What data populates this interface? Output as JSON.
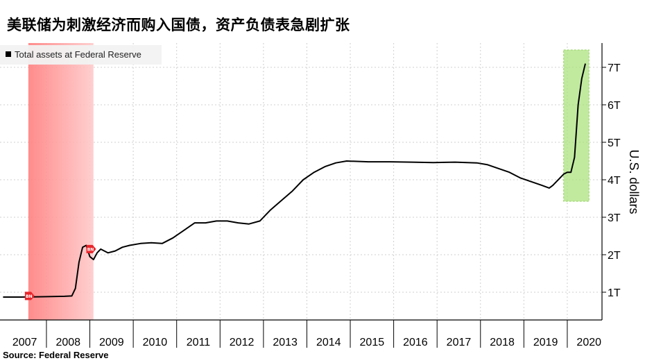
{
  "chart_data": {
    "type": "line",
    "title": "美联储为刺激经济而购入国债，资产负债表急剧扩张",
    "legend_label": "Total assets at Federal Reserve",
    "ylabel": "U.S. dollars",
    "y_ticks": [
      "1T",
      "2T",
      "3T",
      "4T",
      "5T",
      "6T",
      "7T"
    ],
    "x_ticks": [
      "2007",
      "2008",
      "2009",
      "2010",
      "2011",
      "2012",
      "2013",
      "2014",
      "2015",
      "2016",
      "2017",
      "2018",
      "2019",
      "2020"
    ],
    "ylim": [
      0,
      7.5
    ],
    "grid": true,
    "legend_position": "top-left",
    "source": "Source: Federal Reserve",
    "series": [
      {
        "color": "#000000",
        "x": [
          "2007-01",
          "2007-06",
          "2007-12",
          "2008-06",
          "2008-08",
          "2008-09",
          "2008-10",
          "2008-11",
          "2008-12",
          "2009-01",
          "2009-02",
          "2009-03",
          "2009-04",
          "2009-06",
          "2009-08",
          "2009-10",
          "2009-12",
          "2010-03",
          "2010-06",
          "2010-09",
          "2010-12",
          "2011-03",
          "2011-06",
          "2011-09",
          "2011-12",
          "2012-03",
          "2012-06",
          "2012-09",
          "2012-12",
          "2013-03",
          "2013-06",
          "2013-09",
          "2013-12",
          "2014-03",
          "2014-06",
          "2014-09",
          "2014-12",
          "2015-06",
          "2015-12",
          "2016-06",
          "2016-12",
          "2017-06",
          "2017-12",
          "2018-03",
          "2018-06",
          "2018-09",
          "2018-12",
          "2019-03",
          "2019-06",
          "2019-08",
          "2019-09",
          "2019-10",
          "2019-12",
          "2020-01",
          "2020-02",
          "2020-03",
          "2020-04",
          "2020-05",
          "2020-06"
        ],
        "y": [
          0.87,
          0.87,
          0.88,
          0.89,
          0.9,
          1.1,
          1.8,
          2.2,
          2.25,
          1.95,
          1.87,
          2.05,
          2.15,
          2.05,
          2.1,
          2.2,
          2.25,
          2.3,
          2.32,
          2.3,
          2.45,
          2.65,
          2.85,
          2.85,
          2.9,
          2.9,
          2.85,
          2.82,
          2.9,
          3.2,
          3.45,
          3.7,
          4.0,
          4.2,
          4.35,
          4.45,
          4.5,
          4.48,
          4.48,
          4.47,
          4.46,
          4.47,
          4.45,
          4.4,
          4.3,
          4.2,
          4.05,
          3.95,
          3.85,
          3.78,
          3.85,
          3.95,
          4.15,
          4.2,
          4.2,
          4.6,
          6.0,
          6.7,
          7.1
        ]
      }
    ],
    "annotations": [
      {
        "label": "2008",
        "color": "#ff7f7f",
        "x_start": "2007-08",
        "x_end": "2009-02"
      },
      {
        "label": "2020",
        "color": "#a7e277",
        "x_start": "2019-12",
        "x_end": "2020-07"
      }
    ],
    "markers": [
      {
        "x": "2007-08",
        "y": 0.9,
        "label": "BN",
        "color": "#e8262b"
      },
      {
        "x": "2009-01",
        "y": 2.15,
        "label": "BN",
        "color": "#e8262b"
      }
    ]
  }
}
